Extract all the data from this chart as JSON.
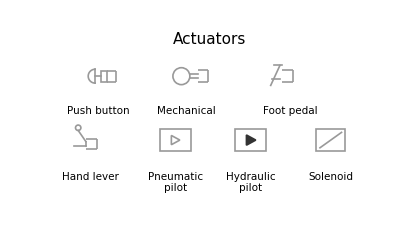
{
  "title": "Actuators",
  "title_fontsize": 11,
  "title_fontweight": "normal",
  "labels": {
    "push_button": "Push button",
    "mechanical": "Mechanical",
    "foot_pedal": "Foot pedal",
    "hand_lever": "Hand lever",
    "pneumatic_pilot": "Pneumatic\npilot",
    "hydraulic_pilot": "Hydraulic\npilot",
    "solenoid": "Solenoid"
  },
  "label_fontsize": 7.5,
  "line_color": "#999999",
  "line_width": 1.2,
  "bg_color": "#ffffff",
  "fig_width": 4.08,
  "fig_height": 2.26,
  "dpi": 100
}
